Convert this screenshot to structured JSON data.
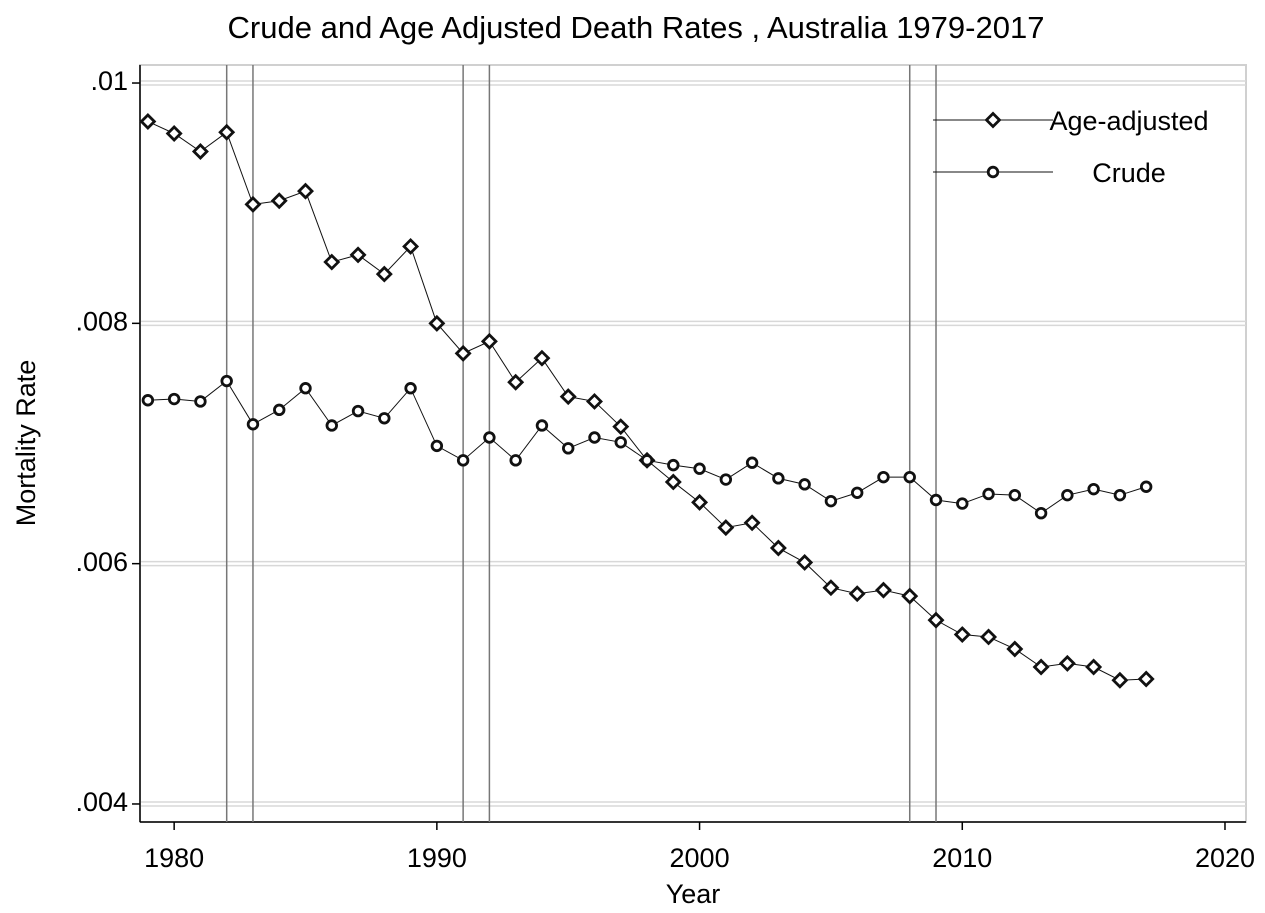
{
  "chart_data": {
    "type": "line",
    "title": "Crude and Age Adjusted Death Rates , Australia 1979-2017",
    "x_label": "Year",
    "y_label": "Mortality Rate",
    "x": [
      1979,
      1980,
      1981,
      1982,
      1983,
      1984,
      1985,
      1986,
      1987,
      1988,
      1989,
      1990,
      1991,
      1992,
      1993,
      1994,
      1995,
      1996,
      1997,
      1998,
      1999,
      2000,
      2001,
      2002,
      2003,
      2004,
      2005,
      2006,
      2007,
      2008,
      2009,
      2010,
      2011,
      2012,
      2013,
      2014,
      2015,
      2016,
      2017
    ],
    "series": [
      {
        "name": "Age-adjusted",
        "color": "#111111",
        "marker": "diamond",
        "values": [
          0.00968,
          0.00958,
          0.00943,
          0.00959,
          0.00899,
          0.00902,
          0.0091,
          0.00851,
          0.00857,
          0.00841,
          0.00864,
          0.008,
          0.00775,
          0.00785,
          0.00751,
          0.00771,
          0.00739,
          0.00735,
          0.00714,
          0.00686,
          0.00668,
          0.00651,
          0.0063,
          0.00634,
          0.00613,
          0.00601,
          0.0058,
          0.00575,
          0.00578,
          0.00573,
          0.00553,
          0.00541,
          0.00539,
          0.00529,
          0.00514,
          0.00517,
          0.00514,
          0.00503,
          0.00504
        ]
      },
      {
        "name": "Crude",
        "color": "#111111",
        "marker": "circle",
        "values": [
          0.00736,
          0.00737,
          0.00735,
          0.00752,
          0.00716,
          0.00728,
          0.00746,
          0.00715,
          0.00727,
          0.00721,
          0.00746,
          0.00698,
          0.00686,
          0.00705,
          0.00686,
          0.00715,
          0.00696,
          0.00705,
          0.00701,
          0.00686,
          0.00682,
          0.00679,
          0.0067,
          0.00684,
          0.00671,
          0.00666,
          0.00652,
          0.00659,
          0.00672,
          0.00672,
          0.00653,
          0.0065,
          0.00658,
          0.00657,
          0.00642,
          0.00657,
          0.00662,
          0.00657,
          0.00664
        ]
      }
    ],
    "vlines": [
      1982,
      1983,
      1991,
      1992,
      2008,
      2009
    ],
    "xlim": [
      1978.7,
      2020.8
    ],
    "ylim": [
      0.00385,
      0.01015
    ],
    "xticks": [
      1980,
      1990,
      2000,
      2010,
      2020
    ],
    "yticks": [
      {
        "value": 0.004,
        "label": ".004"
      },
      {
        "value": 0.006,
        "label": ".006"
      },
      {
        "value": 0.008,
        "label": ".008"
      },
      {
        "value": 0.01,
        "label": ".01"
      }
    ],
    "grid": true,
    "legend": "top-right"
  }
}
